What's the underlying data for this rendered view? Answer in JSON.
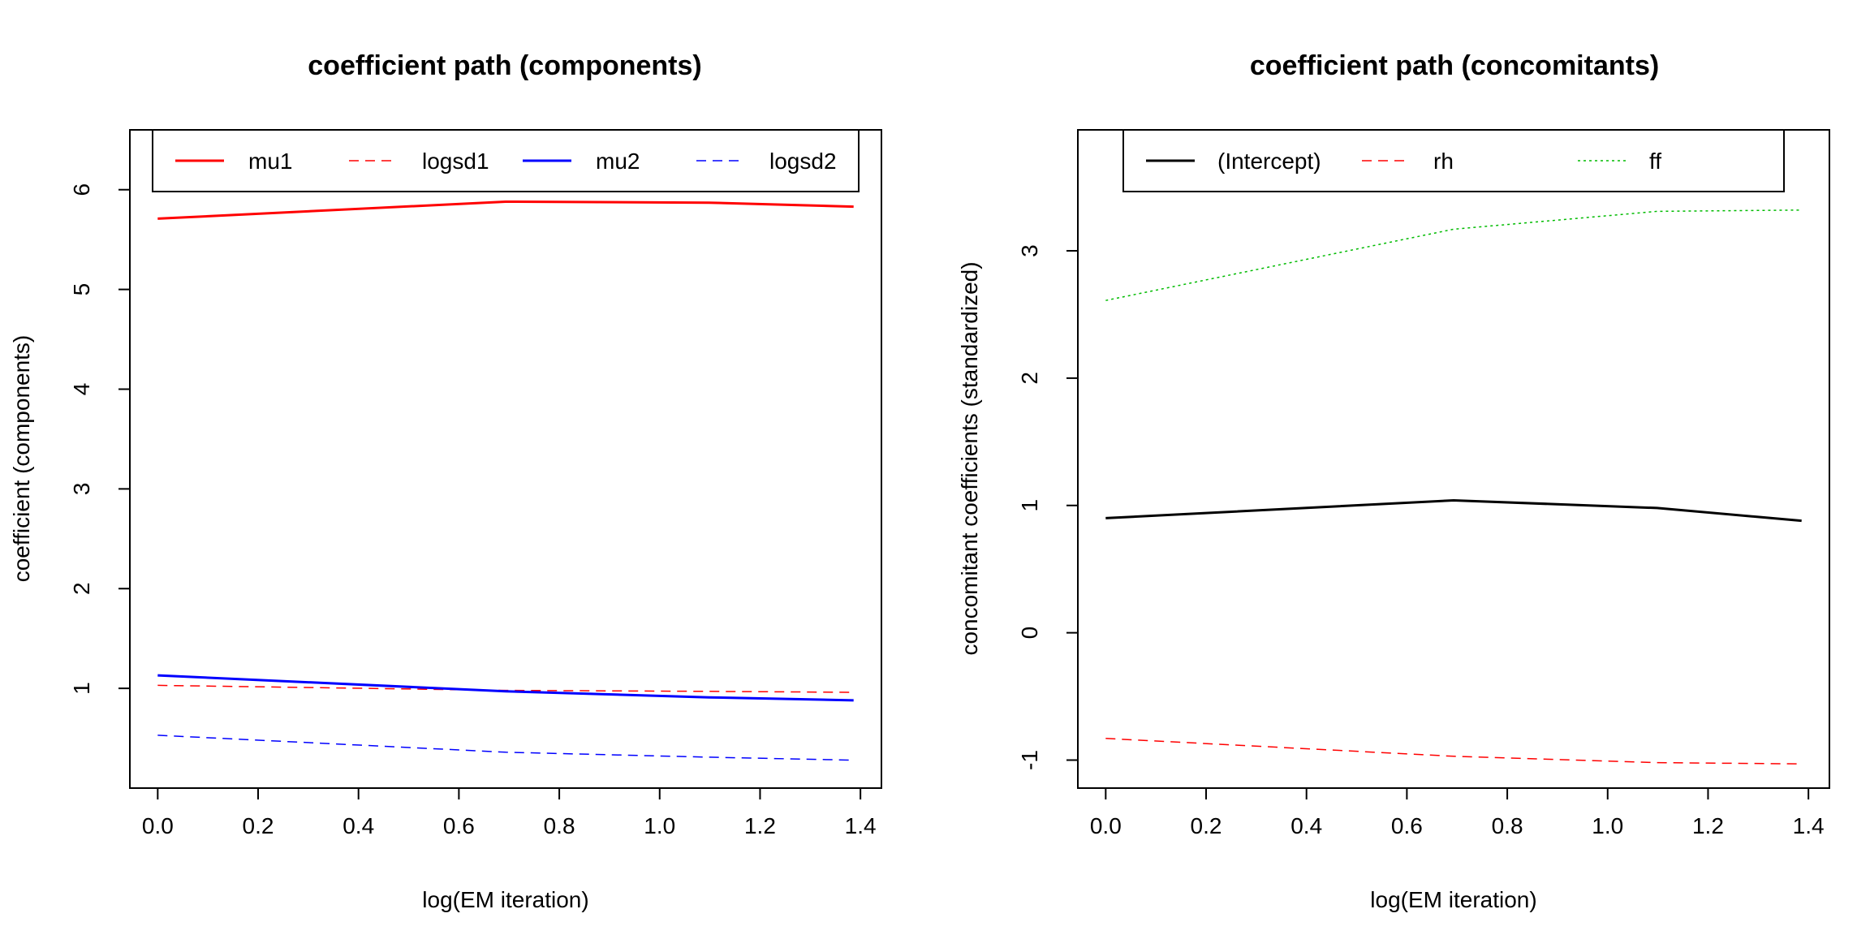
{
  "chart_data": [
    {
      "type": "line",
      "title": "coefficient path (components)",
      "xlabel": "log(EM iteration)",
      "ylabel": "coefficient (components)",
      "xlim": [
        -0.0555,
        1.4418
      ],
      "ylim": [
        0.0,
        6.6
      ],
      "xticks": [
        "0.0",
        "0.2",
        "0.4",
        "0.6",
        "0.8",
        "1.0",
        "1.2",
        "1.4"
      ],
      "yticks": [
        "1",
        "2",
        "3",
        "4",
        "5",
        "6"
      ],
      "x": [
        0.0,
        0.6931,
        1.0986,
        1.3863
      ],
      "legend_position": "top",
      "series": [
        {
          "name": "mu1",
          "color": "#ff0000",
          "dash": "solid",
          "width": 3,
          "values": [
            5.71,
            5.88,
            5.87,
            5.83
          ]
        },
        {
          "name": "logsd1",
          "color": "#ff0000",
          "dash": "dashed",
          "width": 1.5,
          "values": [
            1.03,
            0.98,
            0.97,
            0.96
          ]
        },
        {
          "name": "mu2",
          "color": "#0000ff",
          "dash": "solid",
          "width": 3,
          "values": [
            1.13,
            0.97,
            0.91,
            0.88
          ]
        },
        {
          "name": "logsd2",
          "color": "#0000ff",
          "dash": "dashed",
          "width": 1.5,
          "values": [
            0.53,
            0.36,
            0.31,
            0.28
          ]
        }
      ]
    },
    {
      "type": "line",
      "title": "coefficient path (concomitants)",
      "xlabel": "log(EM iteration)",
      "ylabel": "concomitant coefficients (standardized)",
      "xlim": [
        -0.0555,
        1.4418
      ],
      "ylim": [
        -1.22,
        3.95
      ],
      "xticks": [
        "0.0",
        "0.2",
        "0.4",
        "0.6",
        "0.8",
        "1.0",
        "1.2",
        "1.4"
      ],
      "yticks": [
        "-1",
        "0",
        "1",
        "2",
        "3"
      ],
      "x": [
        0.0,
        0.6931,
        1.0986,
        1.3863
      ],
      "legend_position": "top",
      "series": [
        {
          "name": "(Intercept)",
          "color": "#000000",
          "dash": "solid",
          "width": 3,
          "values": [
            0.9,
            1.04,
            0.98,
            0.88
          ]
        },
        {
          "name": "rh",
          "color": "#ff0000",
          "dash": "dashed",
          "width": 1.5,
          "values": [
            -0.83,
            -0.97,
            -1.02,
            -1.03
          ]
        },
        {
          "name": "ff",
          "color": "#00bb00",
          "dash": "dotted",
          "width": 1.5,
          "values": [
            2.61,
            3.17,
            3.31,
            3.32
          ]
        }
      ]
    }
  ]
}
